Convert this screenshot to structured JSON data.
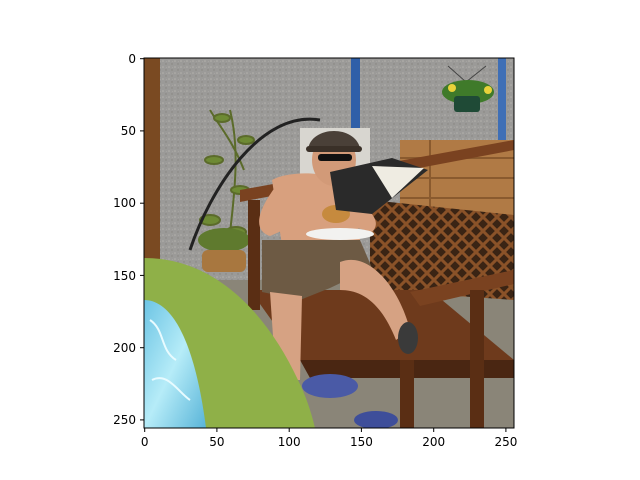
{
  "image_axes": {
    "x_ticks": [
      "0",
      "50",
      "100",
      "150",
      "200",
      "250"
    ],
    "y_ticks": [
      "0",
      "50",
      "100",
      "150",
      "200",
      "250"
    ],
    "xlim": [
      0,
      256
    ],
    "ylim": [
      256,
      0
    ]
  },
  "photo": {
    "subject": "man in cap and sunglasses reading a book on a wooden garden bench",
    "colors": {
      "wall": "#9b9a98",
      "bench": "#7a4220",
      "fence": "#b07a45",
      "shorts": "#6d5a44",
      "skin": "#d8a07e",
      "pool_rim": "#8fb048",
      "pool_water": "#86d4ec",
      "ground": "#8a8578"
    }
  }
}
